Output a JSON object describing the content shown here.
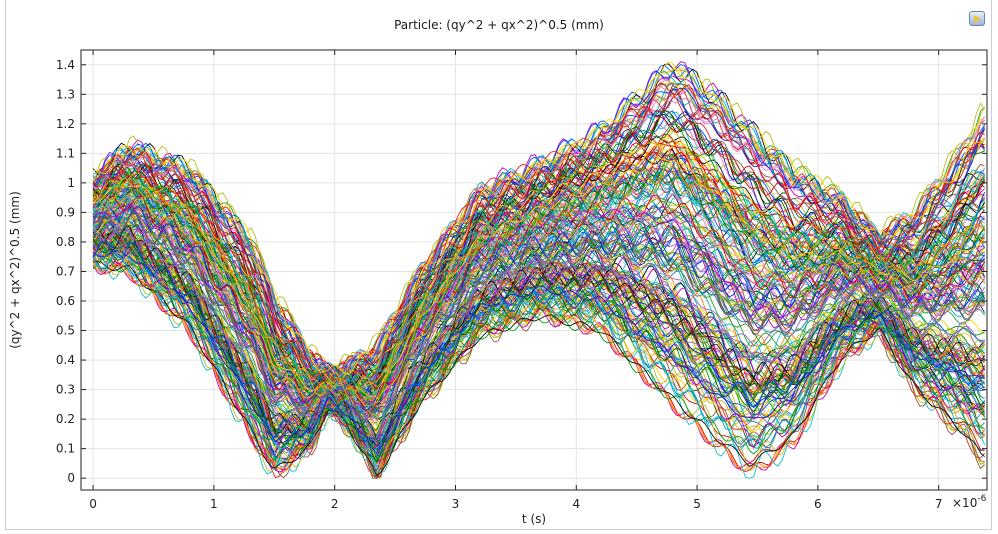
{
  "toolbar": {
    "export_icon": "image-export-icon"
  },
  "chart_data": {
    "type": "line",
    "title": "Particle: (qy^2 + qx^2)^0.5 (mm)",
    "xlabel": "t (s)",
    "ylabel": "(qy^2 + qx^2)^0.5 (mm)",
    "x_multiplier_label": "×10",
    "x_multiplier_exponent": "-6",
    "xlim": [
      -0.1,
      7.4
    ],
    "ylim": [
      -0.04,
      1.45
    ],
    "xticks": [
      0,
      1,
      2,
      3,
      4,
      5,
      6,
      7
    ],
    "yticks": [
      0,
      0.1,
      0.2,
      0.3,
      0.4,
      0.5,
      0.6,
      0.7,
      0.8,
      0.9,
      1,
      1.1,
      1.2,
      1.3,
      1.4
    ],
    "grid": true,
    "legend": "none",
    "series_count": 210,
    "series_colors": [
      "#1f1fcc",
      "#00a000",
      "#e00000",
      "#00b5b5",
      "#c000c0",
      "#d4c400",
      "#101010",
      "#1f77b4",
      "#ff7f0e",
      "#2ca02c",
      "#d62728",
      "#9467bd",
      "#8c564b",
      "#e377c2",
      "#17becf",
      "#bcbd22",
      "#ffd000",
      "#006400",
      "#0050ff"
    ],
    "envelope": {
      "x": [
        0,
        0.3,
        0.8,
        1.3,
        1.5,
        1.8,
        1.95,
        2.1,
        2.35,
        2.7,
        3.2,
        3.7,
        4.2,
        4.8,
        5.2,
        5.45,
        5.8,
        6.2,
        6.5,
        6.8,
        7.2,
        7.35
      ],
      "upper": [
        1.02,
        1.12,
        1.05,
        0.82,
        0.62,
        0.42,
        0.36,
        0.38,
        0.45,
        0.7,
        0.98,
        1.07,
        1.18,
        1.4,
        1.28,
        1.18,
        1.05,
        0.95,
        0.82,
        0.9,
        1.12,
        1.23
      ],
      "lower": [
        0.72,
        0.7,
        0.5,
        0.15,
        0.01,
        0.1,
        0.24,
        0.18,
        0.0,
        0.25,
        0.48,
        0.55,
        0.5,
        0.25,
        0.1,
        0.02,
        0.12,
        0.4,
        0.5,
        0.3,
        0.15,
        0.07
      ]
    },
    "min_value": 0.0,
    "max_value": 1.41
  }
}
